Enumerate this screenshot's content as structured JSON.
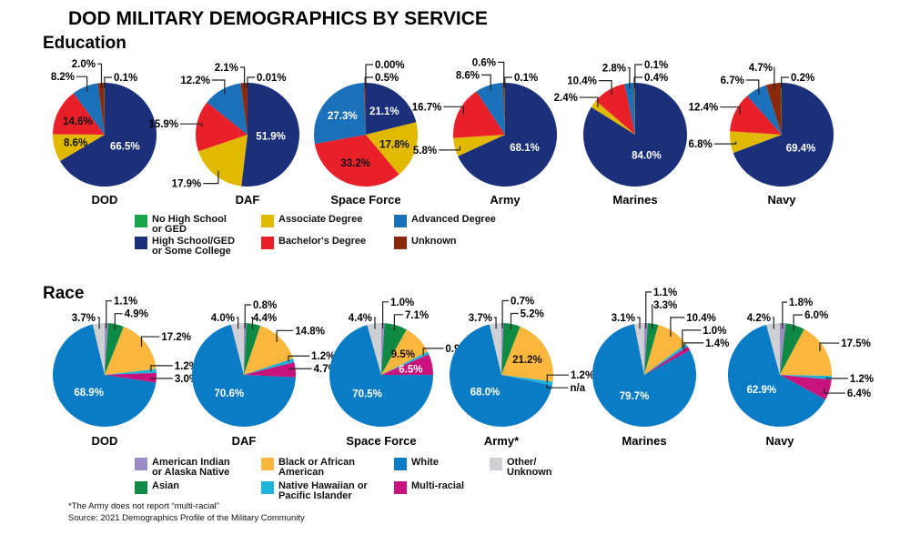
{
  "title": "DOD MILITARY DEMOGRAPHICS BY SERVICE",
  "chart_data": [
    {
      "type": "pie",
      "title": "Education",
      "categories": [
        "High School/GED or Some College",
        "Associate Degree",
        "Bachelor's Degree",
        "Advanced Degree",
        "Unknown",
        "No High School or GED"
      ],
      "colors": [
        "#1b2f7a",
        "#e1b900",
        "#e8202a",
        "#1a70b9",
        "#8b2a0a",
        "#19a64b"
      ],
      "pies": [
        {
          "name": "DOD",
          "values": [
            66.5,
            8.6,
            14.6,
            8.2,
            2.0,
            0.1
          ],
          "labels": [
            "66.5%",
            "8.6%",
            "14.6%",
            "8.2%",
            "2.0%",
            "0.1%"
          ]
        },
        {
          "name": "DAF",
          "values": [
            51.9,
            17.9,
            15.9,
            12.2,
            2.1,
            0.01
          ],
          "labels": [
            "51.9%",
            "17.9%",
            "15.9%",
            "12.2%",
            "2.1%",
            "0.01%"
          ]
        },
        {
          "name": "Space Force",
          "values": [
            21.1,
            17.8,
            33.2,
            27.3,
            0.5,
            0.0
          ],
          "labels": [
            "21.1%",
            "17.8%",
            "33.2%",
            "27.3%",
            "0.5%",
            "0.00%"
          ]
        },
        {
          "name": "Army",
          "values": [
            68.1,
            5.8,
            16.7,
            8.6,
            0.6,
            0.1
          ],
          "labels": [
            "68.1%",
            "5.8%",
            "16.7%",
            "8.6%",
            "0.6%",
            "0.1%"
          ]
        },
        {
          "name": "Marines",
          "values": [
            84.0,
            2.4,
            10.4,
            2.8,
            0.4,
            0.1
          ],
          "labels": [
            "84.0%",
            "2.4%",
            "10.4%",
            "2.8%",
            "0.4%",
            "0.1%"
          ]
        },
        {
          "name": "Navy",
          "values": [
            69.4,
            6.8,
            12.4,
            6.7,
            4.7,
            0.2
          ],
          "labels": [
            "69.4%",
            "6.8%",
            "12.4%",
            "6.7%",
            "4.7%",
            "0.2%"
          ]
        }
      ],
      "legend": [
        "No High School\nor GED",
        "High School/GED\nor Some College",
        "Associate Degree",
        "Bachelor's Degree",
        "Advanced Degree",
        "Unknown"
      ]
    },
    {
      "type": "pie",
      "title": "Race",
      "categories": [
        "American Indian or Alaska Native",
        "Asian",
        "Black or African American",
        "Native Hawaiian or Pacific Islander",
        "Multi-racial",
        "White",
        "Other/Unknown"
      ],
      "colors": [
        "#9b8cc6",
        "#0f8a45",
        "#fbb63d",
        "#1eb3da",
        "#c8127c",
        "#0a7bc5",
        "#cfd0d3"
      ],
      "pies": [
        {
          "name": "DOD",
          "values": [
            1.1,
            4.9,
            17.2,
            1.2,
            3.0,
            68.9,
            3.7
          ],
          "labels": [
            "1.1%",
            "4.9%",
            "17.2%",
            "1.2%",
            "3.0%",
            "68.9%",
            "3.7%"
          ]
        },
        {
          "name": "DAF",
          "values": [
            0.8,
            4.4,
            14.8,
            1.2,
            4.7,
            70.6,
            4.0
          ],
          "labels": [
            "0.8%",
            "4.4%",
            "14.8%",
            "1.2%",
            "4.7%",
            "70.6%",
            "4.0%"
          ]
        },
        {
          "name": "Space Force",
          "values": [
            1.0,
            7.1,
            9.5,
            0.9,
            6.5,
            70.5,
            4.4
          ],
          "labels": [
            "1.0%",
            "7.1%",
            "9.5%",
            "0.9%",
            "6.5%",
            "70.5%",
            "4.4%"
          ]
        },
        {
          "name": "Army*",
          "values": [
            0.7,
            5.2,
            21.2,
            1.2,
            0,
            68.0,
            3.7
          ],
          "labels": [
            "0.7%",
            "5.2%",
            "21.2%",
            "1.2%",
            "n/a",
            "68.0%",
            "3.7%"
          ]
        },
        {
          "name": "Marines",
          "values": [
            1.1,
            3.3,
            10.4,
            1.0,
            1.4,
            79.7,
            3.1
          ],
          "labels": [
            "1.1%",
            "3.3%",
            "10.4%",
            "1.0%",
            "1.4%",
            "79.7%",
            "3.1%"
          ]
        },
        {
          "name": "Navy",
          "values": [
            1.8,
            6.0,
            17.5,
            1.2,
            6.4,
            62.9,
            4.2
          ],
          "labels": [
            "1.8%",
            "6.0%",
            "17.5%",
            "1.2%",
            "6.4%",
            "62.9%",
            "4.2%"
          ]
        }
      ],
      "legend": [
        "American Indian\nor Alaska Native",
        "Asian",
        "Black or African\nAmerican",
        "Native Hawaiian or\nPacific Islander",
        "White",
        "Multi-racial",
        "Other/\nUnknown"
      ]
    }
  ],
  "footnote": "*The Army does not report “multi-racial”",
  "source": "Source: 2021 Demographics Profile of the Military Community"
}
